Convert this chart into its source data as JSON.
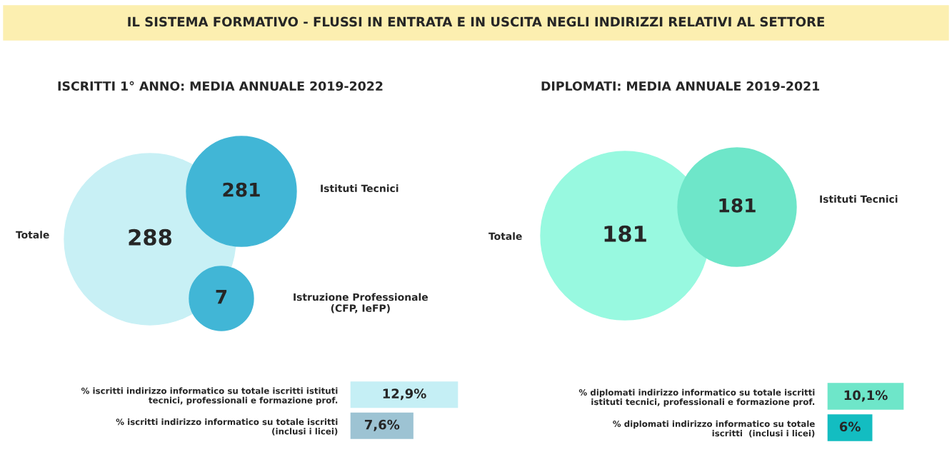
{
  "chart_data": [
    {
      "type": "other",
      "title": "IL SISTEMA FORMATIVO - FLUSSI IN ENTRATA E IN USCITA NEGLI INDIRIZZI RELATIVI AL SETTORE",
      "color": "#fcefb0"
    },
    {
      "type": "other",
      "title": "ISCRITTI 1° ANNO: MEDIA ANNUALE 2019-2022",
      "categories": [
        "Totale",
        "Istituti Tecnici",
        "Istruzione Professionale\n(CFP, IeFP)"
      ],
      "values": [
        288,
        281,
        7
      ],
      "colors": [
        "#c8f0f5",
        "#41b6d6",
        "#41b6d6"
      ],
      "data_labels": true
    },
    {
      "type": "bar",
      "orientation": "horizontal",
      "categories": [
        "% iscritti indirizzo informatico su totale iscritti istituti\ntecnici, professionali e formazione prof.",
        "% iscritti indirizzo informatico su totale iscritti\n(inclusi i licei)"
      ],
      "values": [
        12.9,
        7.6
      ],
      "colors": [
        "#c5eff5",
        "#9dc3d3"
      ],
      "value_labels": [
        "12,9%",
        "7,6%"
      ],
      "tick_labels": "y"
    },
    {
      "type": "other",
      "title": "DIPLOMATI: MEDIA ANNUALE 2019-2021",
      "categories": [
        "Totale",
        "Istituti Tecnici"
      ],
      "values": [
        181,
        181
      ],
      "colors": [
        "#98f9e0",
        "#6ee6c9"
      ],
      "data_labels": true
    },
    {
      "type": "bar",
      "orientation": "horizontal",
      "categories": [
        "% diplomati indirizzo informatico su totale iscritti\nistituti tecnici, professionali e formazione prof.",
        "% diplomati indirizzo informatico su totale\niscritti  (inclusi i licei)"
      ],
      "values": [
        10.1,
        6
      ],
      "colors": [
        "#6ee6c9",
        "#13bdc1"
      ],
      "value_labels": [
        "10,1%",
        "6%"
      ],
      "tick_labels": "y"
    }
  ]
}
